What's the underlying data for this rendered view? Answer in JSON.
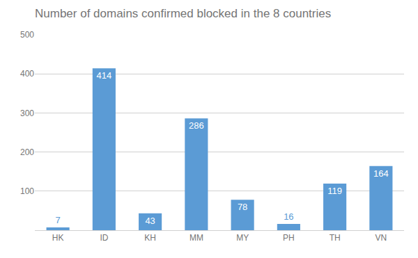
{
  "chart_data": {
    "type": "bar",
    "title": "Number of domains confirmed blocked in the 8 countries",
    "categories": [
      "HK",
      "ID",
      "KH",
      "MM",
      "MY",
      "PH",
      "TH",
      "VN"
    ],
    "values": [
      7,
      414,
      43,
      286,
      78,
      16,
      119,
      164
    ],
    "color": "#5b9bd5",
    "ylim": [
      0,
      500
    ],
    "yticks": [
      100,
      200,
      300,
      400,
      500
    ],
    "grid": true,
    "data_labels": true
  }
}
